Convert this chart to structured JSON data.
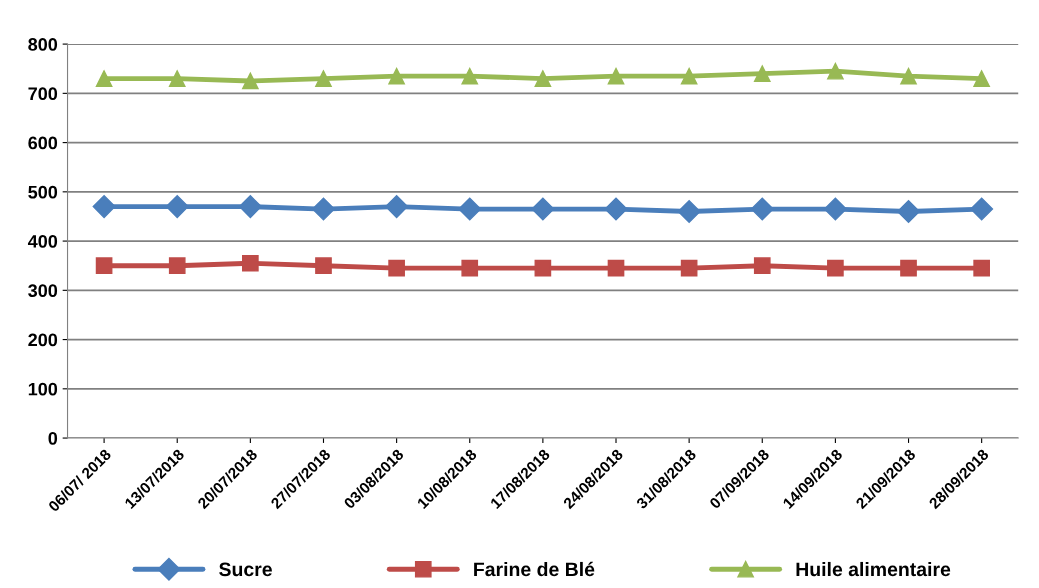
{
  "chart_data": {
    "type": "line",
    "categories": [
      "06/07/ 2018",
      "13/07/2018",
      "20/07/2018",
      "27/07/2018",
      "03/08/2018",
      "10/08/2018",
      "17/08/2018",
      "24/08/2018",
      "31/08/2018",
      "07/09/2018",
      "14/09/2018",
      "21/09/2018",
      "28/09/2018"
    ],
    "series": [
      {
        "name": "Sucre",
        "color": "#4a7ebb",
        "marker": "diamond",
        "values": [
          470,
          470,
          470,
          465,
          470,
          465,
          465,
          465,
          460,
          465,
          465,
          460,
          465
        ]
      },
      {
        "name": "Farine de Blé",
        "color": "#be4b48",
        "marker": "square",
        "values": [
          350,
          350,
          355,
          350,
          345,
          345,
          345,
          345,
          345,
          350,
          345,
          345,
          345
        ]
      },
      {
        "name": "Huile alimentaire",
        "color": "#98b954",
        "marker": "triangle",
        "values": [
          730,
          730,
          725,
          730,
          735,
          735,
          730,
          735,
          735,
          740,
          745,
          735,
          730
        ]
      }
    ],
    "ylim": [
      0,
      800
    ],
    "yticks": [
      0,
      100,
      200,
      300,
      400,
      500,
      600,
      700,
      800
    ],
    "grid": "y",
    "legend": "bottom"
  }
}
